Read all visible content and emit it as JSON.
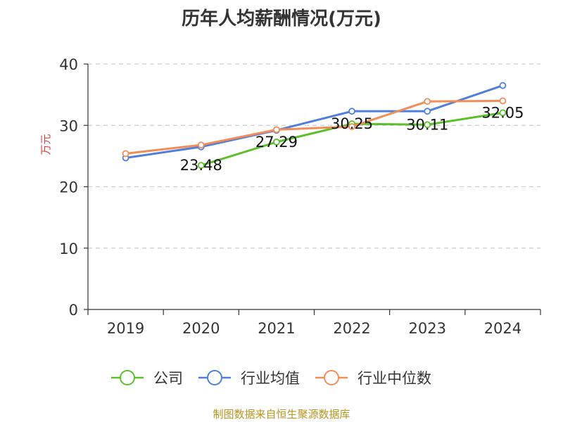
{
  "chart_data": {
    "type": "line",
    "title": "历年人均薪酬情况(万元)",
    "ylabel": "万元",
    "xlabel": "",
    "categories": [
      "2019",
      "2020",
      "2021",
      "2022",
      "2023",
      "2024"
    ],
    "ylim": [
      0,
      40
    ],
    "yticks": [
      0,
      10,
      20,
      30,
      40
    ],
    "grid": true,
    "legend_position": "bottom",
    "series": [
      {
        "name": "公司",
        "color": "#5cc02d",
        "values": [
          null,
          23.48,
          27.29,
          30.25,
          30.11,
          32.05
        ],
        "labels": [
          null,
          "23.48",
          "27.29",
          "30.25",
          "30.11",
          "32.05"
        ]
      },
      {
        "name": "行业均值",
        "color": "#4f7fdc",
        "values": [
          24.7,
          26.5,
          29.2,
          32.3,
          32.3,
          36.5
        ]
      },
      {
        "name": "行业中位数",
        "color": "#f28d58",
        "values": [
          25.4,
          26.8,
          29.3,
          29.8,
          33.9,
          34.0
        ]
      }
    ]
  },
  "source_text": "制图数据来自恒生聚源数据库"
}
